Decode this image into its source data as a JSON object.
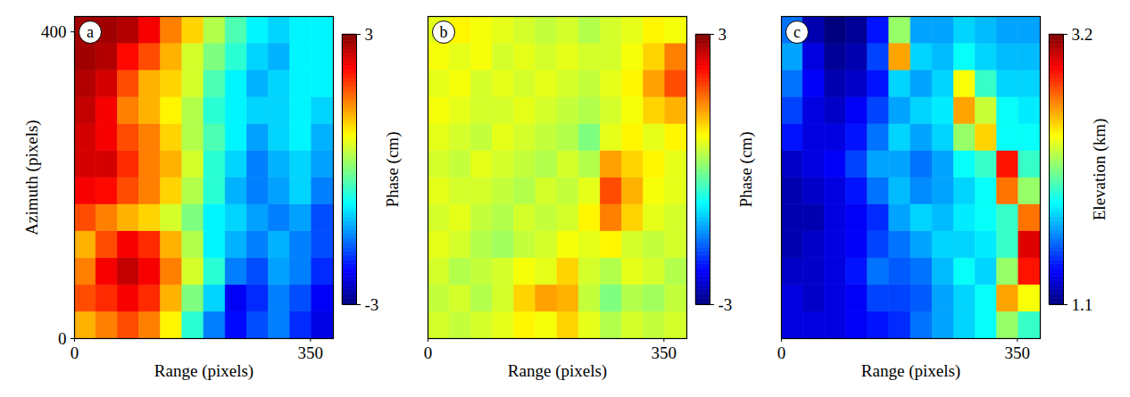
{
  "chart_data": [
    {
      "type": "heatmap",
      "panel_label": "a",
      "xlabel": "Range (pixels)",
      "ylabel": "Azimuth (pixels)",
      "xlim": [
        0,
        384
      ],
      "xticks": [
        0,
        350
      ],
      "ylim": [
        0,
        420
      ],
      "yticks": [
        0,
        400
      ],
      "x_edges": [
        0,
        32,
        64,
        96,
        128,
        160,
        192,
        224,
        256,
        288,
        320,
        352,
        384
      ],
      "y_edges": [
        0,
        35,
        70,
        105,
        140,
        175,
        210,
        245,
        280,
        315,
        350,
        385,
        420
      ],
      "cells": [
        [
          1.2,
          1.5,
          1.8,
          1.5,
          0.8,
          -0.5,
          -1.5,
          -2.2,
          -1.8,
          -1.5,
          -2.0,
          -2.4
        ],
        [
          1.8,
          2.0,
          2.3,
          2.0,
          1.2,
          0.0,
          -1.0,
          -2.3,
          -2.0,
          -1.5,
          -1.8,
          -2.3
        ],
        [
          1.5,
          2.3,
          2.6,
          2.3,
          1.5,
          0.5,
          -0.5,
          -1.5,
          -1.8,
          -1.3,
          -1.5,
          -2.0
        ],
        [
          1.2,
          1.8,
          2.3,
          2.0,
          1.2,
          0.3,
          -0.8,
          -1.2,
          -1.5,
          -1.2,
          -1.5,
          -1.8
        ],
        [
          1.8,
          1.5,
          1.2,
          1.0,
          0.5,
          0.0,
          -0.8,
          -1.0,
          -1.3,
          -1.5,
          -1.3,
          -1.8
        ],
        [
          2.3,
          2.2,
          1.8,
          1.5,
          1.0,
          0.3,
          -0.5,
          -1.2,
          -1.5,
          -1.3,
          -1.0,
          -1.5
        ],
        [
          2.5,
          2.5,
          2.0,
          1.5,
          1.2,
          0.5,
          -0.5,
          -1.0,
          -1.5,
          -1.2,
          -1.0,
          -1.3
        ],
        [
          2.5,
          2.3,
          1.8,
          1.5,
          1.0,
          0.3,
          -0.3,
          -0.8,
          -1.3,
          -1.0,
          -0.8,
          -1.2
        ],
        [
          2.6,
          2.3,
          1.5,
          1.2,
          0.8,
          0.3,
          -0.5,
          -0.8,
          -1.0,
          -1.0,
          -0.8,
          -1.0
        ],
        [
          2.7,
          2.5,
          1.8,
          1.2,
          1.0,
          0.5,
          -0.3,
          -0.8,
          -1.2,
          -1.0,
          -0.8,
          -0.8
        ],
        [
          2.8,
          2.7,
          2.2,
          1.8,
          1.2,
          0.5,
          0.0,
          -0.5,
          -1.0,
          -1.2,
          -0.8,
          -0.8
        ],
        [
          2.8,
          2.8,
          2.7,
          2.3,
          1.5,
          1.0,
          0.3,
          -0.3,
          -0.8,
          -1.0,
          -0.8,
          -0.8
        ]
      ],
      "color_label": "Phase (cm)",
      "color_range": [
        -3,
        3
      ],
      "color_ticks": [
        -3,
        3
      ]
    },
    {
      "type": "heatmap",
      "panel_label": "b",
      "xlabel": "Range (pixels)",
      "tick_labels": "x",
      "xlim": [
        0,
        384
      ],
      "xticks": [
        0,
        350
      ],
      "ylim": [
        0,
        420
      ],
      "x_edges": [
        0,
        32,
        64,
        96,
        128,
        160,
        192,
        224,
        256,
        288,
        320,
        352,
        384
      ],
      "y_edges": [
        0,
        35,
        70,
        105,
        140,
        175,
        210,
        245,
        280,
        315,
        350,
        385,
        420
      ],
      "cells": [
        [
          0.5,
          0.4,
          0.5,
          0.6,
          0.8,
          0.7,
          1.0,
          0.6,
          0.3,
          0.5,
          0.4,
          0.5
        ],
        [
          0.4,
          0.5,
          0.3,
          0.5,
          1.0,
          1.3,
          1.2,
          0.4,
          0.0,
          0.3,
          0.2,
          0.4
        ],
        [
          0.5,
          0.3,
          0.4,
          0.5,
          0.7,
          0.6,
          1.0,
          0.5,
          0.3,
          0.6,
          0.5,
          0.3
        ],
        [
          0.6,
          0.5,
          0.3,
          0.2,
          0.4,
          0.5,
          0.7,
          0.6,
          0.8,
          0.5,
          0.4,
          0.5
        ],
        [
          0.5,
          0.6,
          0.4,
          0.3,
          0.5,
          0.4,
          0.5,
          0.8,
          1.5,
          1.0,
          0.6,
          0.5
        ],
        [
          0.6,
          0.5,
          0.5,
          0.4,
          0.3,
          0.5,
          0.4,
          0.6,
          1.8,
          1.2,
          0.7,
          0.6
        ],
        [
          0.5,
          0.4,
          0.6,
          0.5,
          0.4,
          0.3,
          0.5,
          0.3,
          1.3,
          1.0,
          0.8,
          0.6
        ],
        [
          0.6,
          0.5,
          0.4,
          0.6,
          0.5,
          0.4,
          0.3,
          0.0,
          0.6,
          0.8,
          0.6,
          0.8
        ],
        [
          0.7,
          0.6,
          0.5,
          0.5,
          0.6,
          0.5,
          0.4,
          0.3,
          0.5,
          0.7,
          1.0,
          1.2
        ],
        [
          0.6,
          0.7,
          0.5,
          0.6,
          0.5,
          0.6,
          0.5,
          0.4,
          0.6,
          0.8,
          1.3,
          1.8
        ],
        [
          0.7,
          0.6,
          0.7,
          0.5,
          0.6,
          0.5,
          0.6,
          0.5,
          0.5,
          0.7,
          1.0,
          1.5
        ],
        [
          0.6,
          0.8,
          0.7,
          0.6,
          0.5,
          0.4,
          0.5,
          0.3,
          0.5,
          0.6,
          0.8,
          0.7
        ]
      ],
      "color_label": "Phase (cm)",
      "color_range": [
        -3,
        3
      ],
      "color_ticks": [
        -3,
        3
      ]
    },
    {
      "type": "heatmap",
      "panel_label": "c",
      "xlabel": "Range (pixels)",
      "tick_labels": "x",
      "xlim": [
        0,
        384
      ],
      "xticks": [
        0,
        350
      ],
      "ylim": [
        0,
        420
      ],
      "x_edges": [
        0,
        32,
        64,
        96,
        128,
        160,
        192,
        224,
        256,
        288,
        320,
        352,
        384
      ],
      "y_edges": [
        0,
        35,
        70,
        105,
        140,
        175,
        210,
        245,
        280,
        315,
        350,
        385,
        420
      ],
      "cells": [
        [
          1.3,
          1.3,
          1.3,
          1.35,
          1.4,
          1.45,
          1.6,
          1.7,
          1.8,
          1.9,
          2.2,
          2.0
        ],
        [
          1.3,
          1.25,
          1.3,
          1.35,
          1.5,
          1.5,
          1.55,
          1.7,
          1.8,
          1.9,
          2.6,
          2.4
        ],
        [
          1.25,
          1.25,
          1.3,
          1.4,
          1.6,
          1.55,
          1.6,
          1.75,
          1.9,
          1.8,
          2.2,
          2.9
        ],
        [
          1.2,
          1.25,
          1.3,
          1.35,
          1.5,
          1.6,
          1.7,
          1.8,
          1.8,
          1.85,
          2.0,
          3.0
        ],
        [
          1.2,
          1.2,
          1.3,
          1.35,
          1.45,
          1.7,
          1.8,
          1.75,
          1.85,
          1.9,
          2.0,
          2.7
        ],
        [
          1.2,
          1.25,
          1.3,
          1.4,
          1.6,
          1.75,
          1.65,
          1.7,
          1.8,
          1.9,
          2.7,
          2.2
        ],
        [
          1.25,
          1.3,
          1.35,
          1.5,
          1.7,
          1.7,
          1.6,
          1.7,
          1.9,
          2.0,
          2.9,
          2.0
        ],
        [
          1.4,
          1.3,
          1.3,
          1.4,
          1.6,
          1.8,
          1.7,
          1.8,
          2.2,
          2.5,
          1.9,
          1.9
        ],
        [
          1.5,
          1.3,
          1.25,
          1.35,
          1.5,
          1.7,
          1.8,
          1.85,
          2.6,
          2.3,
          1.9,
          1.85
        ],
        [
          1.6,
          1.35,
          1.2,
          1.25,
          1.4,
          1.8,
          1.7,
          1.8,
          2.4,
          2.0,
          1.8,
          1.8
        ],
        [
          1.7,
          1.3,
          1.15,
          1.2,
          1.5,
          2.6,
          1.8,
          1.75,
          1.9,
          1.8,
          1.75,
          1.75
        ],
        [
          1.6,
          1.2,
          1.1,
          1.15,
          1.4,
          2.2,
          1.7,
          1.7,
          1.8,
          1.75,
          1.7,
          1.7
        ]
      ],
      "color_label": "Elevation (km)",
      "color_range": [
        1.1,
        3.2
      ],
      "color_ticks": [
        1.1,
        3.2
      ]
    }
  ]
}
